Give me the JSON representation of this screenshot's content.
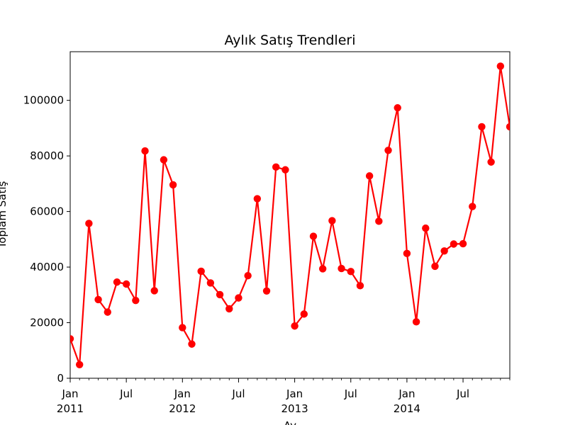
{
  "chart_data": {
    "type": "line",
    "title": "Aylık Satış Trendleri",
    "xlabel": "Ay",
    "ylabel": "Toplam Satış",
    "x": [
      "2011-01",
      "2011-02",
      "2011-03",
      "2011-04",
      "2011-05",
      "2011-06",
      "2011-07",
      "2011-08",
      "2011-09",
      "2011-10",
      "2011-11",
      "2011-12",
      "2012-01",
      "2012-02",
      "2012-03",
      "2012-04",
      "2012-05",
      "2012-06",
      "2012-07",
      "2012-08",
      "2012-09",
      "2012-10",
      "2012-11",
      "2012-12",
      "2013-01",
      "2013-02",
      "2013-03",
      "2013-04",
      "2013-05",
      "2013-06",
      "2013-07",
      "2013-08",
      "2013-09",
      "2013-10",
      "2013-11",
      "2013-12",
      "2014-01",
      "2014-02",
      "2014-03",
      "2014-04",
      "2014-05",
      "2014-06",
      "2014-07",
      "2014-08",
      "2014-09",
      "2014-10",
      "2014-11",
      "2014-12"
    ],
    "series": [
      {
        "name": "",
        "color": "#ff0000",
        "marker": "circle",
        "values": [
          14200,
          4900,
          55700,
          28300,
          23800,
          34600,
          33900,
          28000,
          81800,
          31500,
          78600,
          69600,
          18200,
          12300,
          38500,
          34300,
          30100,
          25000,
          28900,
          36900,
          64600,
          31400,
          76000,
          75000,
          18800,
          23100,
          51100,
          39400,
          56700,
          39500,
          38400,
          33300,
          72800,
          56500,
          82000,
          97300,
          44900,
          20300,
          54000,
          40300,
          45800,
          48300,
          48400,
          61800,
          90500,
          77800,
          112300,
          90500
        ]
      }
    ],
    "xlim": [
      "2011-01",
      "2014-12"
    ],
    "ylim": [
      0,
      117500
    ],
    "yticks": [
      0,
      20000,
      40000,
      60000,
      80000,
      100000
    ],
    "ytick_labels": [
      "0",
      "20000",
      "40000",
      "60000",
      "80000",
      "100000"
    ],
    "xticks": [
      "2011-01",
      "2011-07",
      "2012-01",
      "2012-07",
      "2013-01",
      "2013-07",
      "2014-01",
      "2014-07"
    ],
    "xtick_labels": [
      [
        "Jan",
        "2011"
      ],
      [
        "Jul",
        ""
      ],
      [
        "Jan",
        "2012"
      ],
      [
        "Jul",
        ""
      ],
      [
        "Jan",
        "2013"
      ],
      [
        "Jul",
        ""
      ],
      [
        "Jan",
        "2014"
      ],
      [
        "Jul",
        ""
      ]
    ],
    "grid": false,
    "legend": false
  }
}
